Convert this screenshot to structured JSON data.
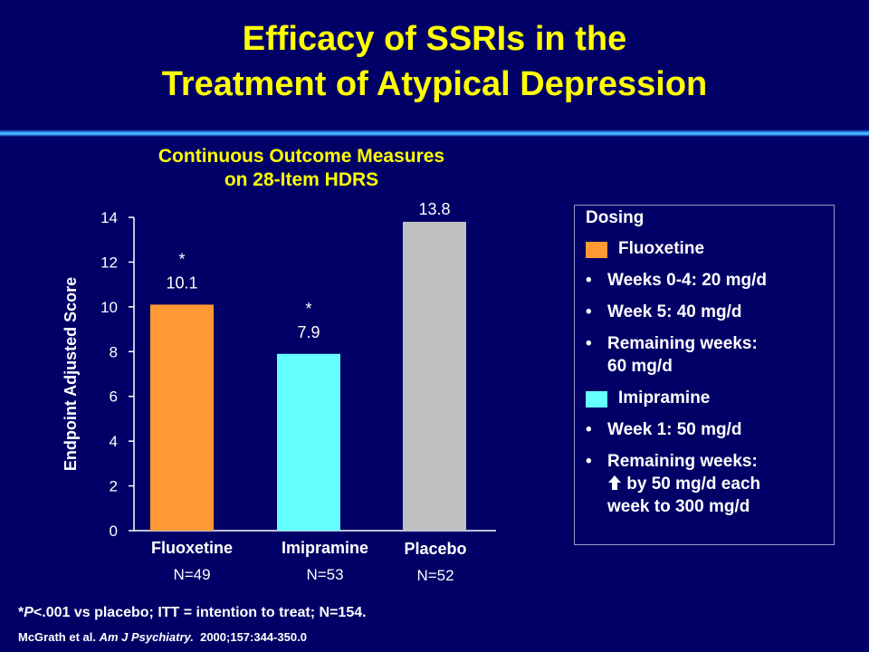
{
  "slide": {
    "title_line1": "Efficacy of SSRIs in the",
    "title_line2": "Treatment of Atypical Depression"
  },
  "colors": {
    "background": "#000066",
    "title": "#ffff00",
    "fluoxetine": "#ff9933",
    "imipramine": "#66ffff",
    "placebo": "#c0c0c0"
  },
  "chart_data": {
    "type": "bar",
    "title_line1": "Continuous Outcome Measures",
    "title_line2": "on 28-Item HDRS",
    "ylabel": "Endpoint Adjusted Score",
    "xlabel": "",
    "ylim": [
      0,
      14
    ],
    "yticks": [
      0,
      2,
      4,
      6,
      8,
      10,
      12,
      14
    ],
    "categories": [
      "Fluoxetine",
      "Imipramine",
      "Placebo"
    ],
    "sample_sizes": [
      "N=49",
      "N=53",
      "N=52"
    ],
    "values": [
      10.1,
      7.9,
      13.8
    ],
    "value_labels": [
      "10.1",
      "7.9",
      "13.8"
    ],
    "significance": [
      "*",
      "*",
      ""
    ],
    "grid": false,
    "legend": "none"
  },
  "legend": {
    "heading": "Dosing",
    "fluoxetine_label": "Fluoxetine",
    "fluoxetine_items": [
      "Weeks 0-4:  20 mg/d",
      "Week 5:   40 mg/d",
      "Remaining weeks:",
      "60 mg/d"
    ],
    "imipramine_label": "Imipramine",
    "imipramine_items": [
      "Week 1:  50 mg/d",
      "Remaining weeks:",
      "by 50 mg/d each",
      "week to 300 mg/d"
    ],
    "arrow_glyph": "🡅",
    "bullet": "•"
  },
  "footnote": {
    "star": "*",
    "p": "P",
    "rest": "<.001 vs placebo; ITT = intention to treat; N=154."
  },
  "reference": {
    "authors": "McGrath et al. ",
    "journal": "Am J Psychiatry.",
    "citation": "  2000;157:344-350.0"
  }
}
